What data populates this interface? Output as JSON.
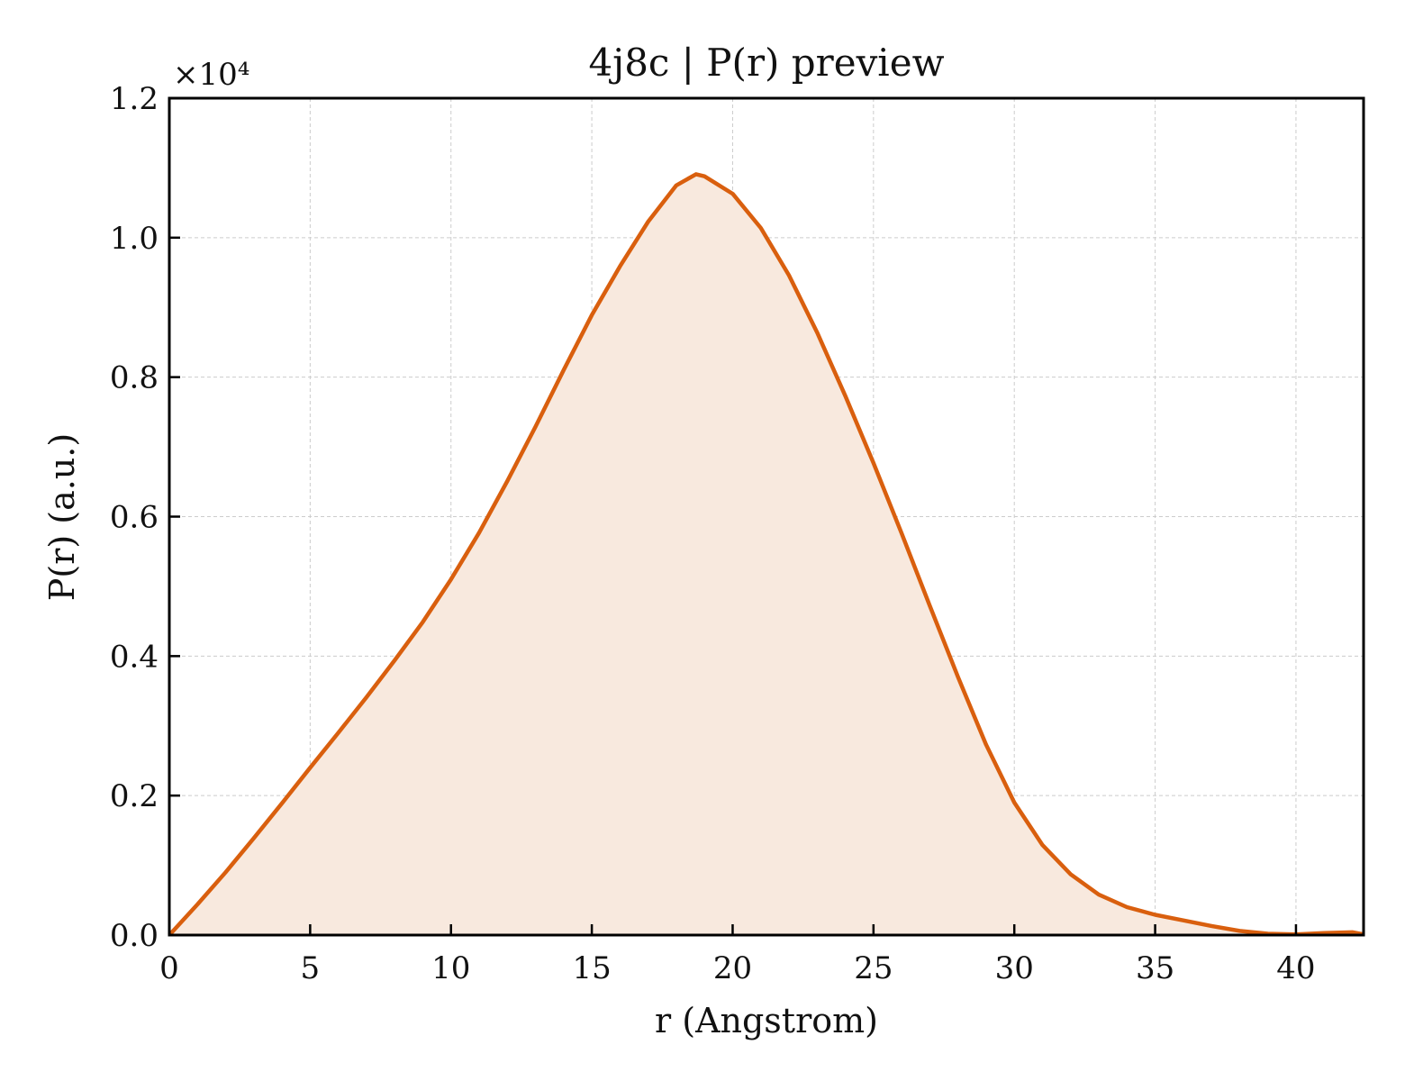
{
  "chart_data": {
    "type": "area",
    "title": "4j8c | P(r) preview",
    "xlabel": "r (Angstrom)",
    "ylabel": "P(r) (a.u.)",
    "y_offset_label": "×10⁴",
    "xlim": [
      0,
      42.4
    ],
    "ylim": [
      0,
      1.2
    ],
    "xticks": [
      0,
      5,
      10,
      15,
      20,
      25,
      30,
      35,
      40
    ],
    "xtick_labels": [
      "0",
      "5",
      "10",
      "15",
      "20",
      "25",
      "30",
      "35",
      "40"
    ],
    "yticks": [
      0,
      0.2,
      0.4,
      0.6,
      0.8,
      1.0,
      1.2
    ],
    "ytick_labels": [
      "0.0",
      "0.2",
      "0.4",
      "0.6",
      "0.8",
      "1.0",
      "1.2"
    ],
    "grid": true,
    "colors": {
      "line": "#d95f0e",
      "fill": "#f8e9de",
      "grid": "#cccccc",
      "axes": "#000000"
    },
    "series": [
      {
        "x": [
          0,
          1,
          2,
          3,
          4,
          5,
          6,
          7,
          8,
          9,
          10,
          11,
          12,
          13,
          14,
          15,
          16,
          17,
          18,
          18.7,
          19,
          20,
          21,
          22,
          23,
          24,
          25,
          26,
          27,
          28,
          29,
          30,
          31,
          32,
          33,
          34,
          35,
          36,
          37,
          38,
          39,
          40,
          41,
          42,
          42.4
        ],
        "y": [
          0.0,
          0.044,
          0.09,
          0.139,
          0.189,
          0.24,
          0.29,
          0.341,
          0.394,
          0.449,
          0.51,
          0.577,
          0.651,
          0.729,
          0.81,
          0.889,
          0.959,
          1.023,
          1.075,
          1.091,
          1.088,
          1.063,
          1.014,
          0.946,
          0.864,
          0.773,
          0.677,
          0.576,
          0.472,
          0.37,
          0.273,
          0.19,
          0.129,
          0.087,
          0.058,
          0.04,
          0.029,
          0.021,
          0.013,
          0.006,
          0.002,
          0.001,
          0.003,
          0.004,
          0.001
        ]
      }
    ]
  }
}
